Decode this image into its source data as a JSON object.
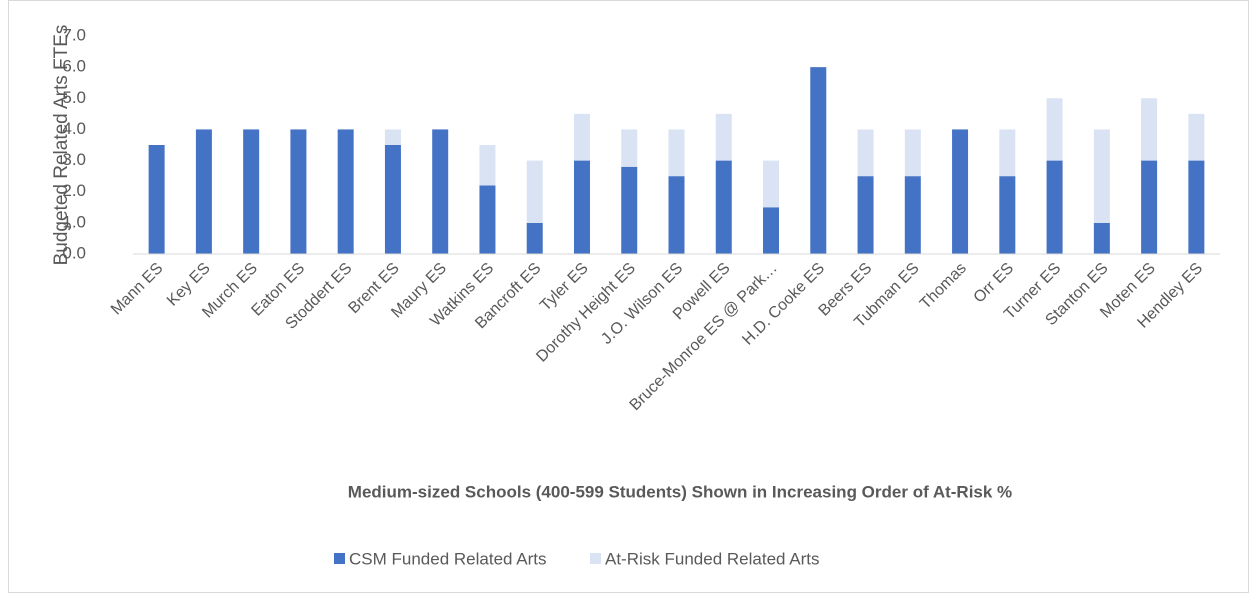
{
  "chart_data": {
    "type": "stacked_bar",
    "xlabel": "Medium-sized Schools (400-599 Students) Shown in Increasing Order of At-Risk %",
    "ylabel": "Budgeted Related Arts FTEs",
    "categories": [
      "Mann ES",
      "Key ES",
      "Murch ES",
      "Eaton ES",
      "Stoddert ES",
      "Brent ES",
      "Maury ES",
      "Watkins ES",
      "Bancroft ES",
      "Tyler ES",
      "Dorothy Height ES",
      "J.O. Wilson ES",
      "Powell ES",
      "Bruce-Monroe ES @ Park…",
      "H.D. Cooke ES",
      "Beers ES",
      "Tubman ES",
      "Thomas",
      "Orr ES",
      "Turner ES",
      "Stanton ES",
      "Moten ES",
      "Hendley ES"
    ],
    "series": [
      {
        "name": "CSM Funded Related Arts",
        "color": "#4472c4",
        "values": [
          3.5,
          4,
          4,
          4,
          4,
          3.5,
          4,
          2.2,
          1,
          3,
          2.8,
          2.5,
          3,
          1.5,
          6,
          2.5,
          2.5,
          4,
          2.5,
          3,
          1,
          3,
          3
        ]
      },
      {
        "name": "At-Risk Funded Related Arts",
        "color": "#dae3f3",
        "values": [
          0,
          0,
          0,
          0,
          0,
          0.5,
          0,
          1.3,
          2,
          1.5,
          1.2,
          1.5,
          1.5,
          1.5,
          0,
          1.5,
          1.5,
          0,
          1.5,
          2,
          3,
          2,
          1.5
        ]
      }
    ],
    "ylim": [
      0,
      7
    ],
    "yticks": [
      {
        "value": 0,
        "label": "0.0"
      },
      {
        "value": 1,
        "label": "1.0"
      },
      {
        "value": 2,
        "label": "2.0"
      },
      {
        "value": 3,
        "label": "3.0"
      },
      {
        "value": 4,
        "label": "4.0"
      },
      {
        "value": 5,
        "label": "5.0"
      },
      {
        "value": 6,
        "label": "6.0"
      },
      {
        "value": 7,
        "label": "7.0"
      }
    ],
    "legend": "bottom"
  }
}
